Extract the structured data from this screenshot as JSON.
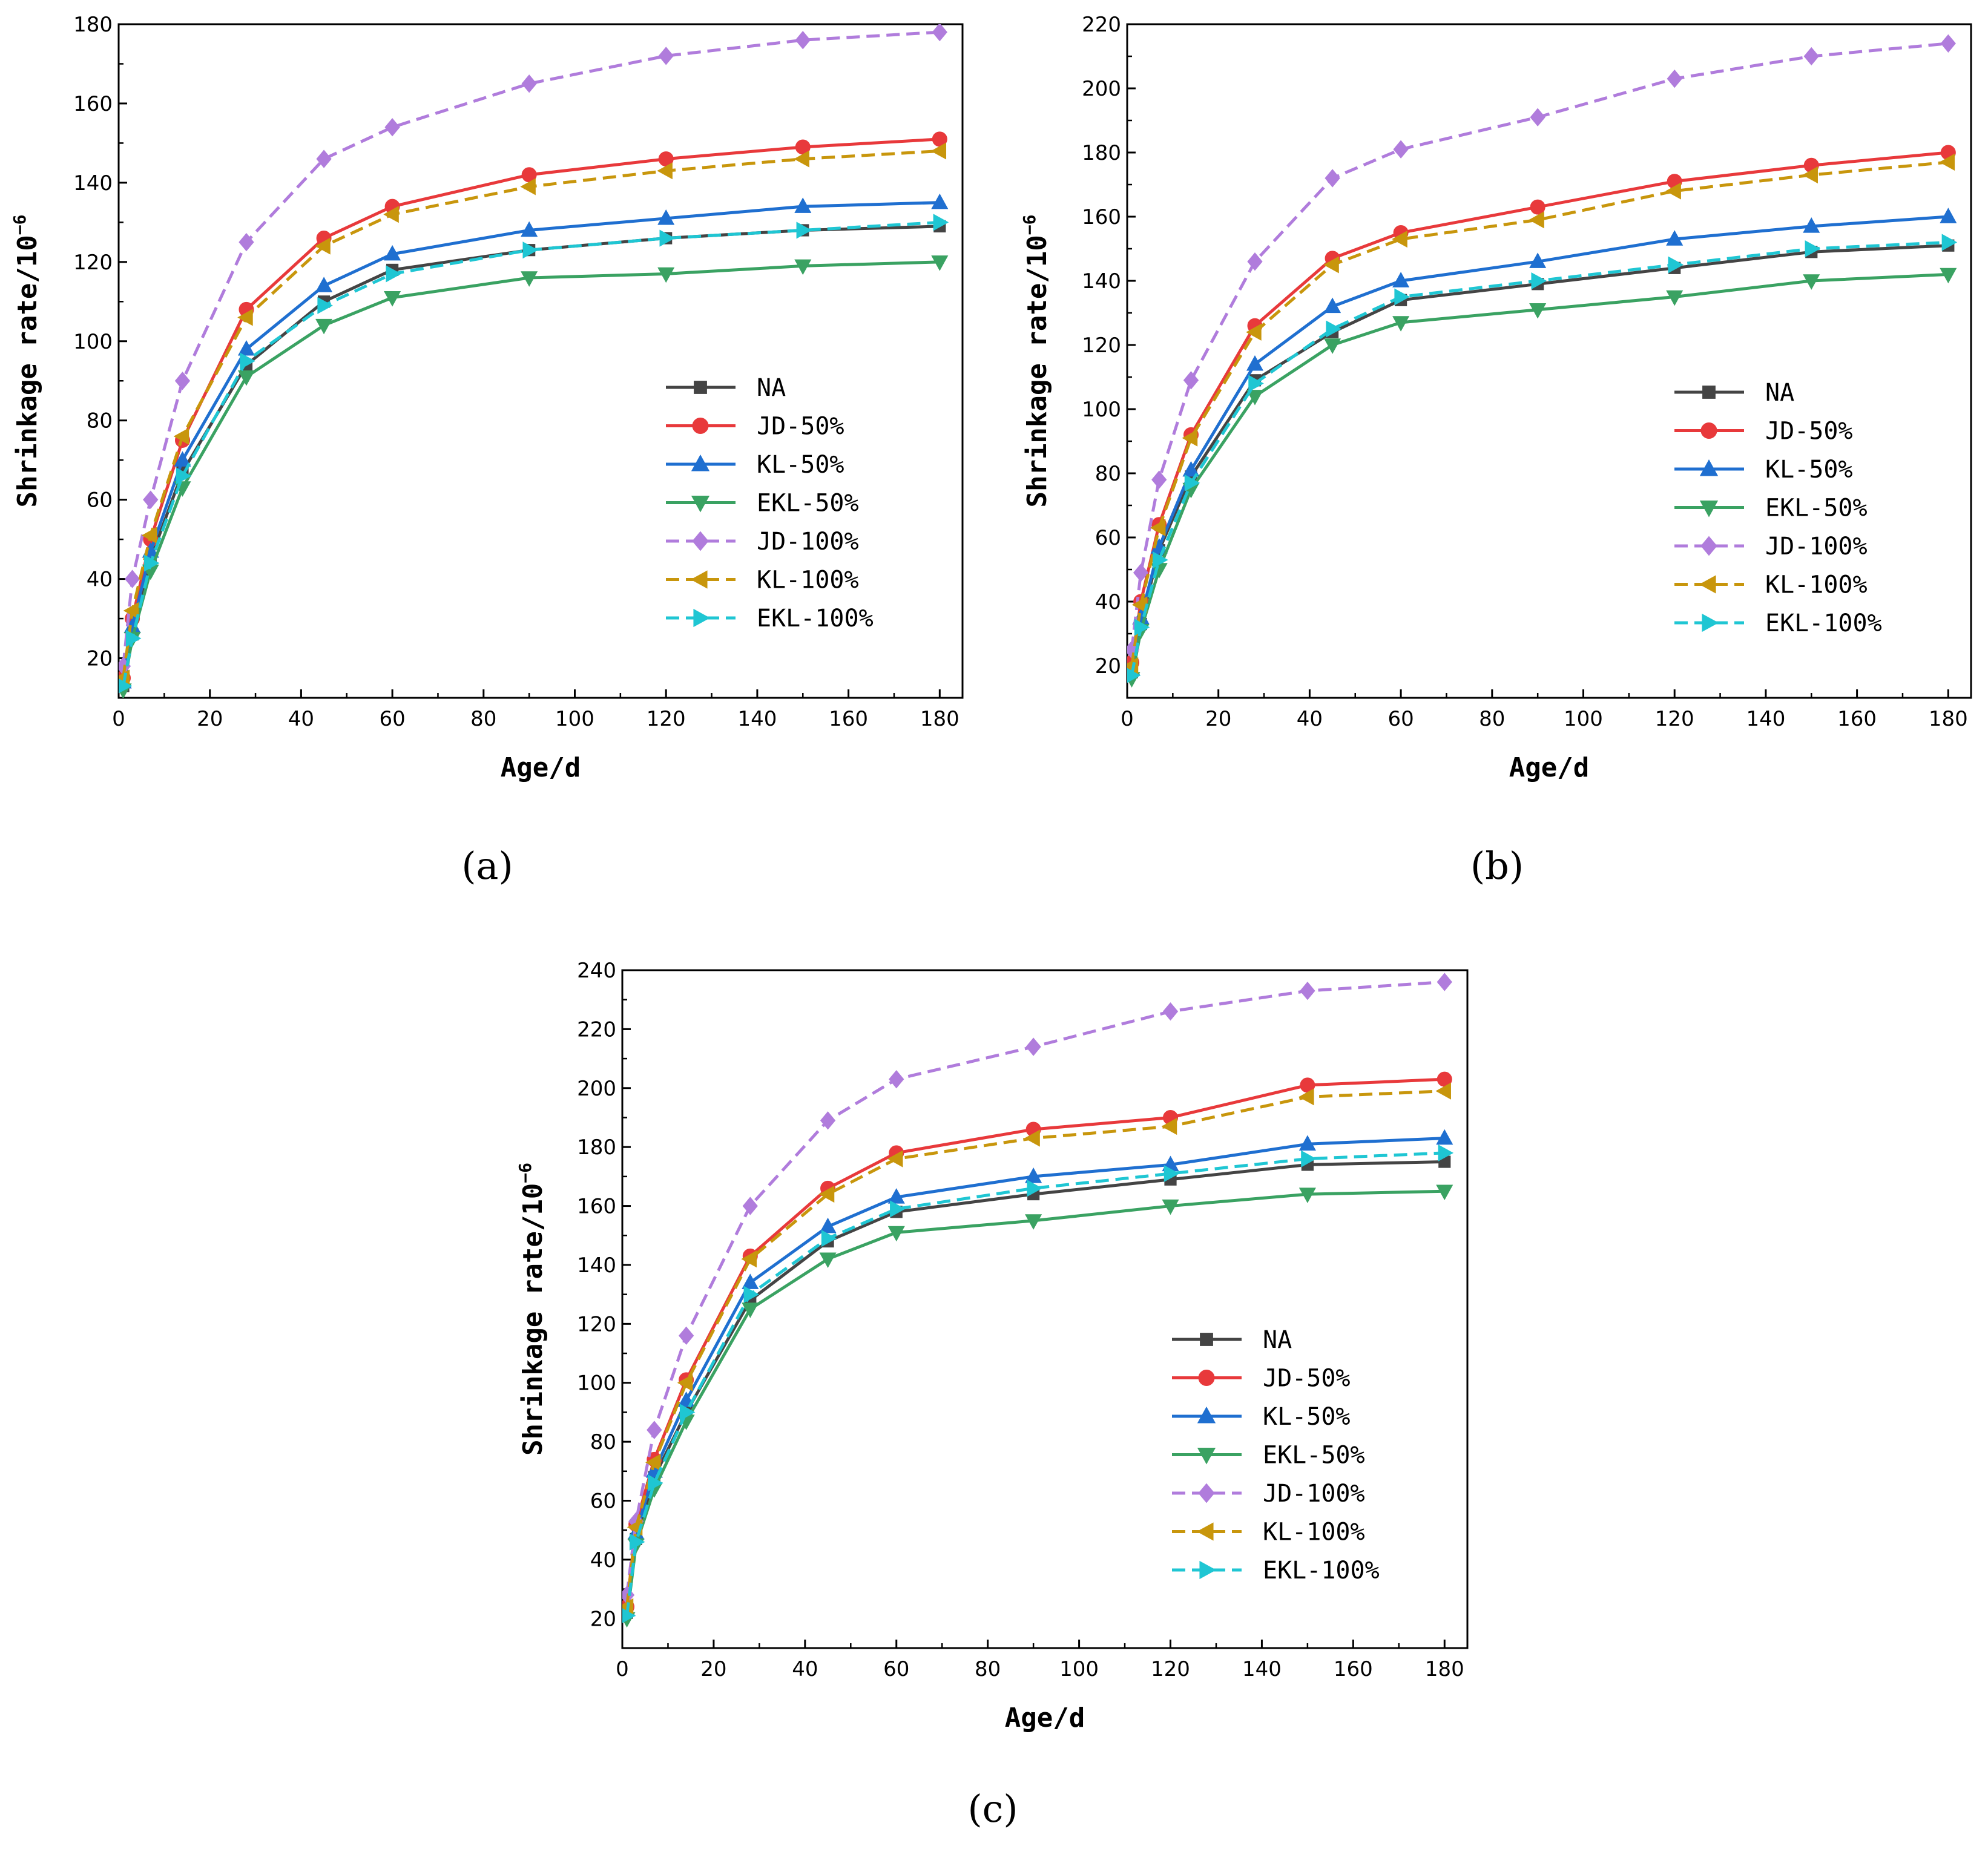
{
  "figure": {
    "panels": [
      "(a)",
      "(b)",
      "(c)"
    ]
  },
  "chart_data": [
    {
      "type": "line",
      "caption": "(a)",
      "xlabel": "Age/d",
      "ylabel": "Shrinkage rate/10",
      "ylabel_exponent": "−6",
      "xlim": [
        0,
        185
      ],
      "ylim": [
        10,
        180
      ],
      "xticks": [
        0,
        20,
        40,
        60,
        80,
        100,
        120,
        140,
        160,
        180
      ],
      "yticks": [
        20,
        40,
        60,
        80,
        100,
        120,
        140,
        160,
        180
      ],
      "x": [
        1,
        3,
        7,
        14,
        28,
        45,
        60,
        90,
        120,
        150,
        180
      ],
      "series": [
        {
          "name": "NA",
          "color": "#444444",
          "dash": false,
          "marker": "square",
          "values": [
            13,
            26,
            45,
            67,
            94,
            110,
            118,
            123,
            126,
            128,
            129
          ]
        },
        {
          "name": "JD-50%",
          "color": "#e8393b",
          "dash": false,
          "marker": "circle",
          "values": [
            15,
            30,
            50,
            75,
            108,
            126,
            134,
            142,
            146,
            149,
            151
          ]
        },
        {
          "name": "KL-50%",
          "color": "#1f6fd0",
          "dash": false,
          "marker": "triangle-up",
          "values": [
            14,
            28,
            47,
            70,
            98,
            114,
            122,
            128,
            131,
            134,
            135
          ]
        },
        {
          "name": "EKL-50%",
          "color": "#3aa262",
          "dash": false,
          "marker": "triangle-down",
          "values": [
            12,
            25,
            42,
            63,
            91,
            104,
            111,
            116,
            117,
            119,
            120
          ]
        },
        {
          "name": "JD-100%",
          "color": "#b07cdc",
          "dash": true,
          "marker": "diamond",
          "values": [
            18,
            40,
            60,
            90,
            125,
            146,
            154,
            165,
            172,
            176,
            178
          ]
        },
        {
          "name": "KL-100%",
          "color": "#c8960c",
          "dash": true,
          "marker": "triangle-left",
          "values": [
            15,
            32,
            51,
            76,
            106,
            124,
            132,
            139,
            143,
            146,
            148
          ]
        },
        {
          "name": "EKL-100%",
          "color": "#1fc6d3",
          "dash": true,
          "marker": "triangle-right",
          "values": [
            13,
            25,
            44,
            66,
            95,
            109,
            117,
            123,
            126,
            128,
            130
          ]
        }
      ]
    },
    {
      "type": "line",
      "caption": "(b)",
      "xlabel": "Age/d",
      "ylabel": "Shrinkage rate/10",
      "ylabel_exponent": "−6",
      "xlim": [
        0,
        185
      ],
      "ylim": [
        10,
        220
      ],
      "xticks": [
        0,
        20,
        40,
        60,
        80,
        100,
        120,
        140,
        160,
        180
      ],
      "yticks": [
        20,
        40,
        60,
        80,
        100,
        120,
        140,
        160,
        180,
        200,
        220
      ],
      "x": [
        1,
        3,
        7,
        14,
        28,
        45,
        60,
        90,
        120,
        150,
        180
      ],
      "series": [
        {
          "name": "NA",
          "color": "#444444",
          "dash": false,
          "marker": "square",
          "values": [
            18,
            33,
            56,
            79,
            109,
            124,
            134,
            139,
            144,
            149,
            151
          ]
        },
        {
          "name": "JD-50%",
          "color": "#e8393b",
          "dash": false,
          "marker": "circle",
          "values": [
            21,
            40,
            64,
            92,
            126,
            147,
            155,
            163,
            171,
            176,
            180
          ]
        },
        {
          "name": "KL-50%",
          "color": "#1f6fd0",
          "dash": false,
          "marker": "triangle-up",
          "values": [
            19,
            35,
            57,
            81,
            114,
            132,
            140,
            146,
            153,
            157,
            160
          ]
        },
        {
          "name": "EKL-50%",
          "color": "#3aa262",
          "dash": false,
          "marker": "triangle-down",
          "values": [
            16,
            31,
            50,
            75,
            104,
            120,
            127,
            131,
            135,
            140,
            142
          ]
        },
        {
          "name": "JD-100%",
          "color": "#b07cdc",
          "dash": true,
          "marker": "diamond",
          "values": [
            25,
            49,
            78,
            109,
            146,
            172,
            181,
            191,
            203,
            210,
            214
          ]
        },
        {
          "name": "KL-100%",
          "color": "#c8960c",
          "dash": true,
          "marker": "triangle-left",
          "values": [
            20,
            39,
            63,
            91,
            124,
            145,
            153,
            159,
            168,
            173,
            177
          ]
        },
        {
          "name": "EKL-100%",
          "color": "#1fc6d3",
          "dash": true,
          "marker": "triangle-right",
          "values": [
            17,
            32,
            53,
            77,
            108,
            125,
            135,
            140,
            145,
            150,
            152
          ]
        }
      ]
    },
    {
      "type": "line",
      "caption": "(c)",
      "xlabel": "Age/d",
      "ylabel": "Shrinkage rate/10",
      "ylabel_exponent": "−6",
      "xlim": [
        0,
        185
      ],
      "ylim": [
        10,
        240
      ],
      "xticks": [
        0,
        20,
        40,
        60,
        80,
        100,
        120,
        140,
        160,
        180
      ],
      "yticks": [
        20,
        40,
        60,
        80,
        100,
        120,
        140,
        160,
        180,
        200,
        220,
        240
      ],
      "x": [
        1,
        3,
        7,
        14,
        28,
        45,
        60,
        90,
        120,
        150,
        180
      ],
      "series": [
        {
          "name": "NA",
          "color": "#444444",
          "dash": false,
          "marker": "square",
          "values": [
            22,
            47,
            68,
            90,
            128,
            148,
            158,
            164,
            169,
            174,
            175
          ]
        },
        {
          "name": "JD-50%",
          "color": "#e8393b",
          "dash": false,
          "marker": "circle",
          "values": [
            24,
            52,
            74,
            101,
            143,
            166,
            178,
            186,
            190,
            201,
            203
          ]
        },
        {
          "name": "KL-50%",
          "color": "#1f6fd0",
          "dash": false,
          "marker": "triangle-up",
          "values": [
            23,
            49,
            70,
            94,
            134,
            153,
            163,
            170,
            174,
            181,
            183
          ]
        },
        {
          "name": "EKL-50%",
          "color": "#3aa262",
          "dash": false,
          "marker": "triangle-down",
          "values": [
            20,
            45,
            64,
            87,
            125,
            142,
            151,
            155,
            160,
            164,
            165
          ]
        },
        {
          "name": "JD-100%",
          "color": "#b07cdc",
          "dash": true,
          "marker": "diamond",
          "values": [
            28,
            53,
            84,
            116,
            160,
            189,
            203,
            214,
            226,
            233,
            236
          ]
        },
        {
          "name": "KL-100%",
          "color": "#c8960c",
          "dash": true,
          "marker": "triangle-left",
          "values": [
            24,
            51,
            73,
            100,
            142,
            164,
            176,
            183,
            187,
            197,
            199
          ]
        },
        {
          "name": "EKL-100%",
          "color": "#1fc6d3",
          "dash": true,
          "marker": "triangle-right",
          "values": [
            21,
            46,
            66,
            90,
            130,
            149,
            159,
            166,
            171,
            176,
            178
          ]
        }
      ]
    }
  ]
}
